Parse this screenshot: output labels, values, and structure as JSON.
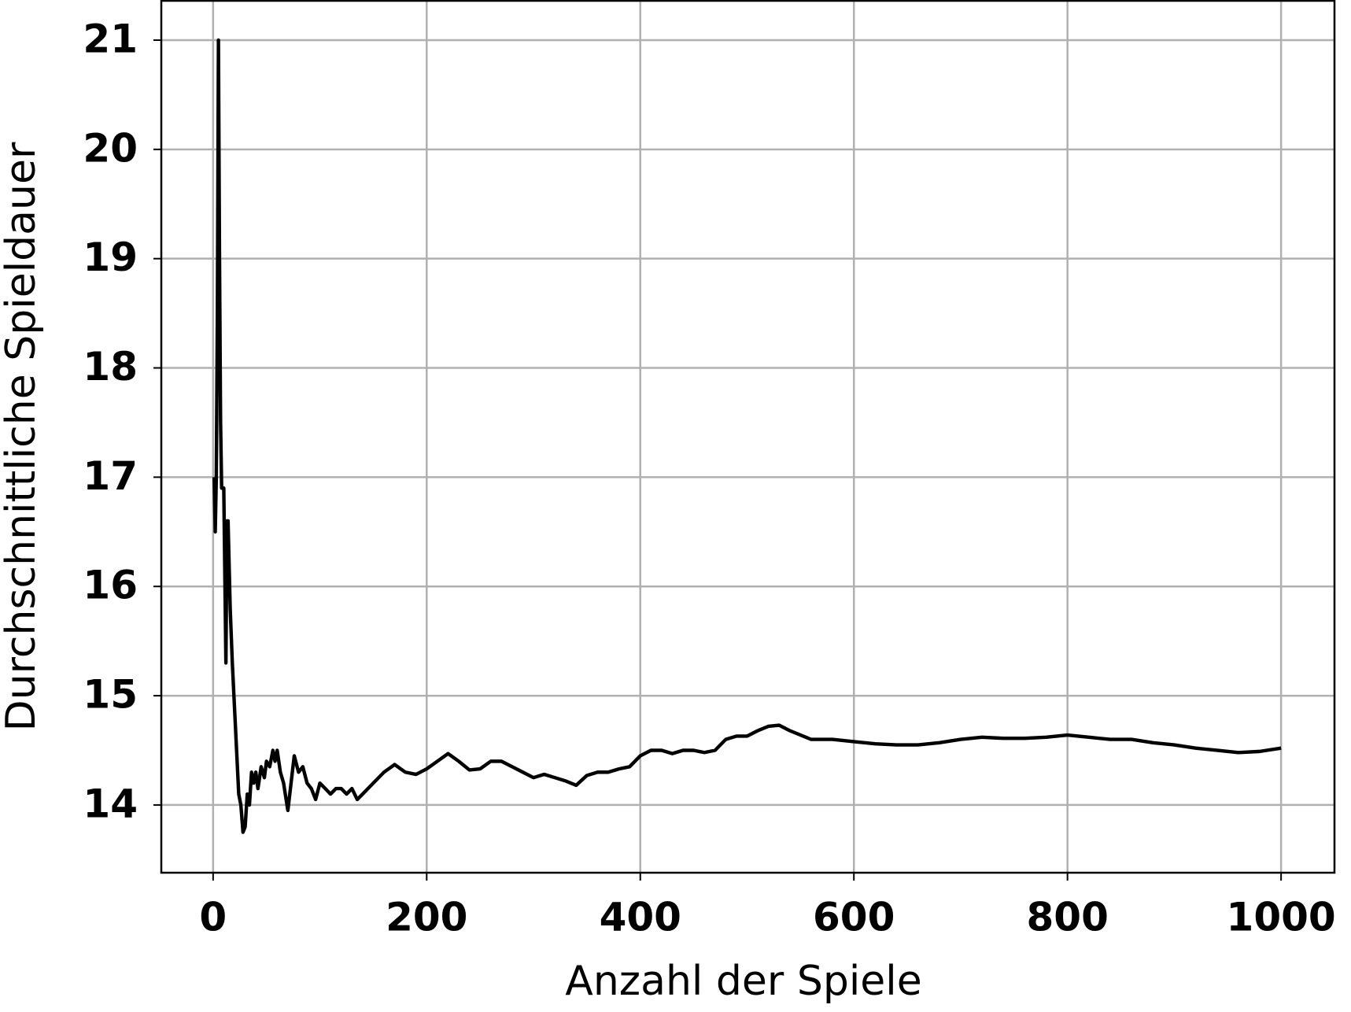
{
  "chart_data": {
    "type": "line",
    "xlabel": "Anzahl der Spiele",
    "ylabel": "Durchschnittliche Spieldauer",
    "xlim": [
      -48.5,
      1050
    ],
    "ylim": [
      13.38,
      21.36
    ],
    "xticks": [
      0,
      200,
      400,
      600,
      800,
      1000
    ],
    "yticks": [
      14,
      15,
      16,
      17,
      18,
      19,
      20,
      21
    ],
    "grid": true,
    "series": [
      {
        "color": "#000000",
        "x": [
          1,
          2,
          3,
          4,
          5,
          6,
          7,
          8,
          10,
          12,
          13,
          14,
          16,
          18,
          20,
          22,
          24,
          26,
          28,
          30,
          32,
          34,
          36,
          38,
          40,
          42,
          45,
          48,
          50,
          53,
          56,
          58,
          60,
          63,
          66,
          70,
          73,
          76,
          80,
          84,
          88,
          92,
          96,
          100,
          105,
          110,
          115,
          120,
          125,
          130,
          135,
          140,
          150,
          160,
          170,
          180,
          190,
          200,
          210,
          220,
          230,
          240,
          250,
          260,
          270,
          280,
          290,
          300,
          310,
          320,
          330,
          340,
          350,
          360,
          370,
          380,
          390,
          400,
          410,
          420,
          430,
          440,
          450,
          460,
          470,
          480,
          490,
          500,
          510,
          520,
          530,
          540,
          560,
          580,
          600,
          620,
          640,
          660,
          680,
          700,
          720,
          740,
          760,
          780,
          800,
          820,
          840,
          860,
          880,
          900,
          920,
          940,
          960,
          980,
          1000
        ],
        "values": [
          17,
          16.5,
          17,
          18.5,
          21,
          19,
          17.5,
          16.9,
          16.9,
          15.3,
          16.6,
          16.6,
          15.8,
          15.3,
          14.9,
          14.5,
          14.1,
          14.0,
          13.75,
          13.8,
          14.1,
          14.0,
          14.3,
          14.2,
          14.3,
          14.15,
          14.35,
          14.25,
          14.4,
          14.35,
          14.5,
          14.4,
          14.5,
          14.3,
          14.2,
          13.95,
          14.2,
          14.45,
          14.3,
          14.35,
          14.2,
          14.15,
          14.05,
          14.2,
          14.15,
          14.1,
          14.15,
          14.15,
          14.1,
          14.15,
          14.05,
          14.1,
          14.2,
          14.3,
          14.37,
          14.3,
          14.28,
          14.33,
          14.4,
          14.47,
          14.4,
          14.32,
          14.33,
          14.4,
          14.4,
          14.35,
          14.3,
          14.25,
          14.28,
          14.25,
          14.22,
          14.18,
          14.27,
          14.3,
          14.3,
          14.33,
          14.35,
          14.45,
          14.5,
          14.5,
          14.47,
          14.5,
          14.5,
          14.48,
          14.5,
          14.6,
          14.63,
          14.63,
          14.68,
          14.72,
          14.73,
          14.68,
          14.6,
          14.6,
          14.58,
          14.56,
          14.55,
          14.55,
          14.57,
          14.6,
          14.62,
          14.61,
          14.61,
          14.62,
          14.64,
          14.62,
          14.6,
          14.6,
          14.57,
          14.55,
          14.52,
          14.5,
          14.48,
          14.49,
          14.52
        ]
      }
    ]
  }
}
